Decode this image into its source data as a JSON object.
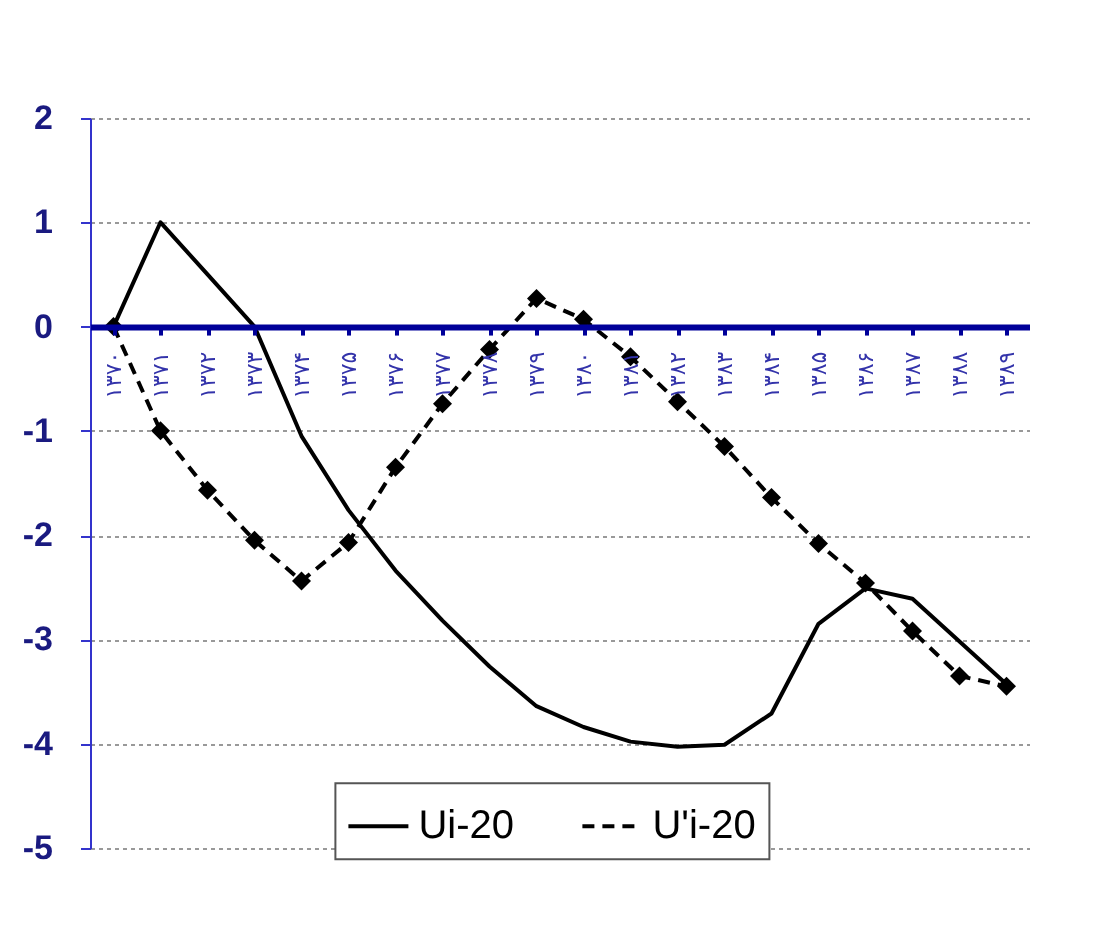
{
  "chart_data": {
    "type": "line",
    "categories": [
      "۱۳۷۰",
      "۱۳۷۱",
      "۱۳۷۲",
      "۱۳۷۳",
      "۱۳۷۴",
      "۱۳۷۵",
      "۱۳۷۶",
      "۱۳۷۷",
      "۱۳۷۸",
      "۱۳۷۹",
      "۱۳۸۰",
      "۱۳۸۱",
      "۱۳۸۲",
      "۱۳۸۳",
      "۱۳۸۴",
      "۱۳۸۵",
      "۱۳۸۶",
      "۱۳۸۷",
      "۱۳۸۸",
      "۱۳۸۹"
    ],
    "series": [
      {
        "name": "Ui-20",
        "color": "#000000",
        "line_style": "solid",
        "marker": "none",
        "values": [
          0,
          1.0,
          0.5,
          0,
          -1.05,
          -1.76,
          -2.34,
          -2.82,
          -3.26,
          -3.64,
          -3.84,
          -3.98,
          -4.03,
          -4.01,
          -3.71,
          -2.85,
          -2.51,
          -2.61,
          -3.02,
          -3.43
        ]
      },
      {
        "name": "U'i-20",
        "color": "#000000",
        "line_style": "dashed",
        "marker": "diamond",
        "values": [
          0,
          -1.0,
          -1.57,
          -2.05,
          -2.44,
          -2.07,
          -1.35,
          -0.74,
          -0.22,
          0.27,
          0.07,
          -0.29,
          -0.72,
          -1.15,
          -1.64,
          -2.08,
          -2.46,
          -2.92,
          -3.35,
          -3.45
        ]
      }
    ],
    "ylim": [
      -5,
      2
    ],
    "yticks": [
      -5,
      -4,
      -3,
      -2,
      -1,
      0,
      1,
      2
    ],
    "grid": "y",
    "legend": "bottom"
  }
}
